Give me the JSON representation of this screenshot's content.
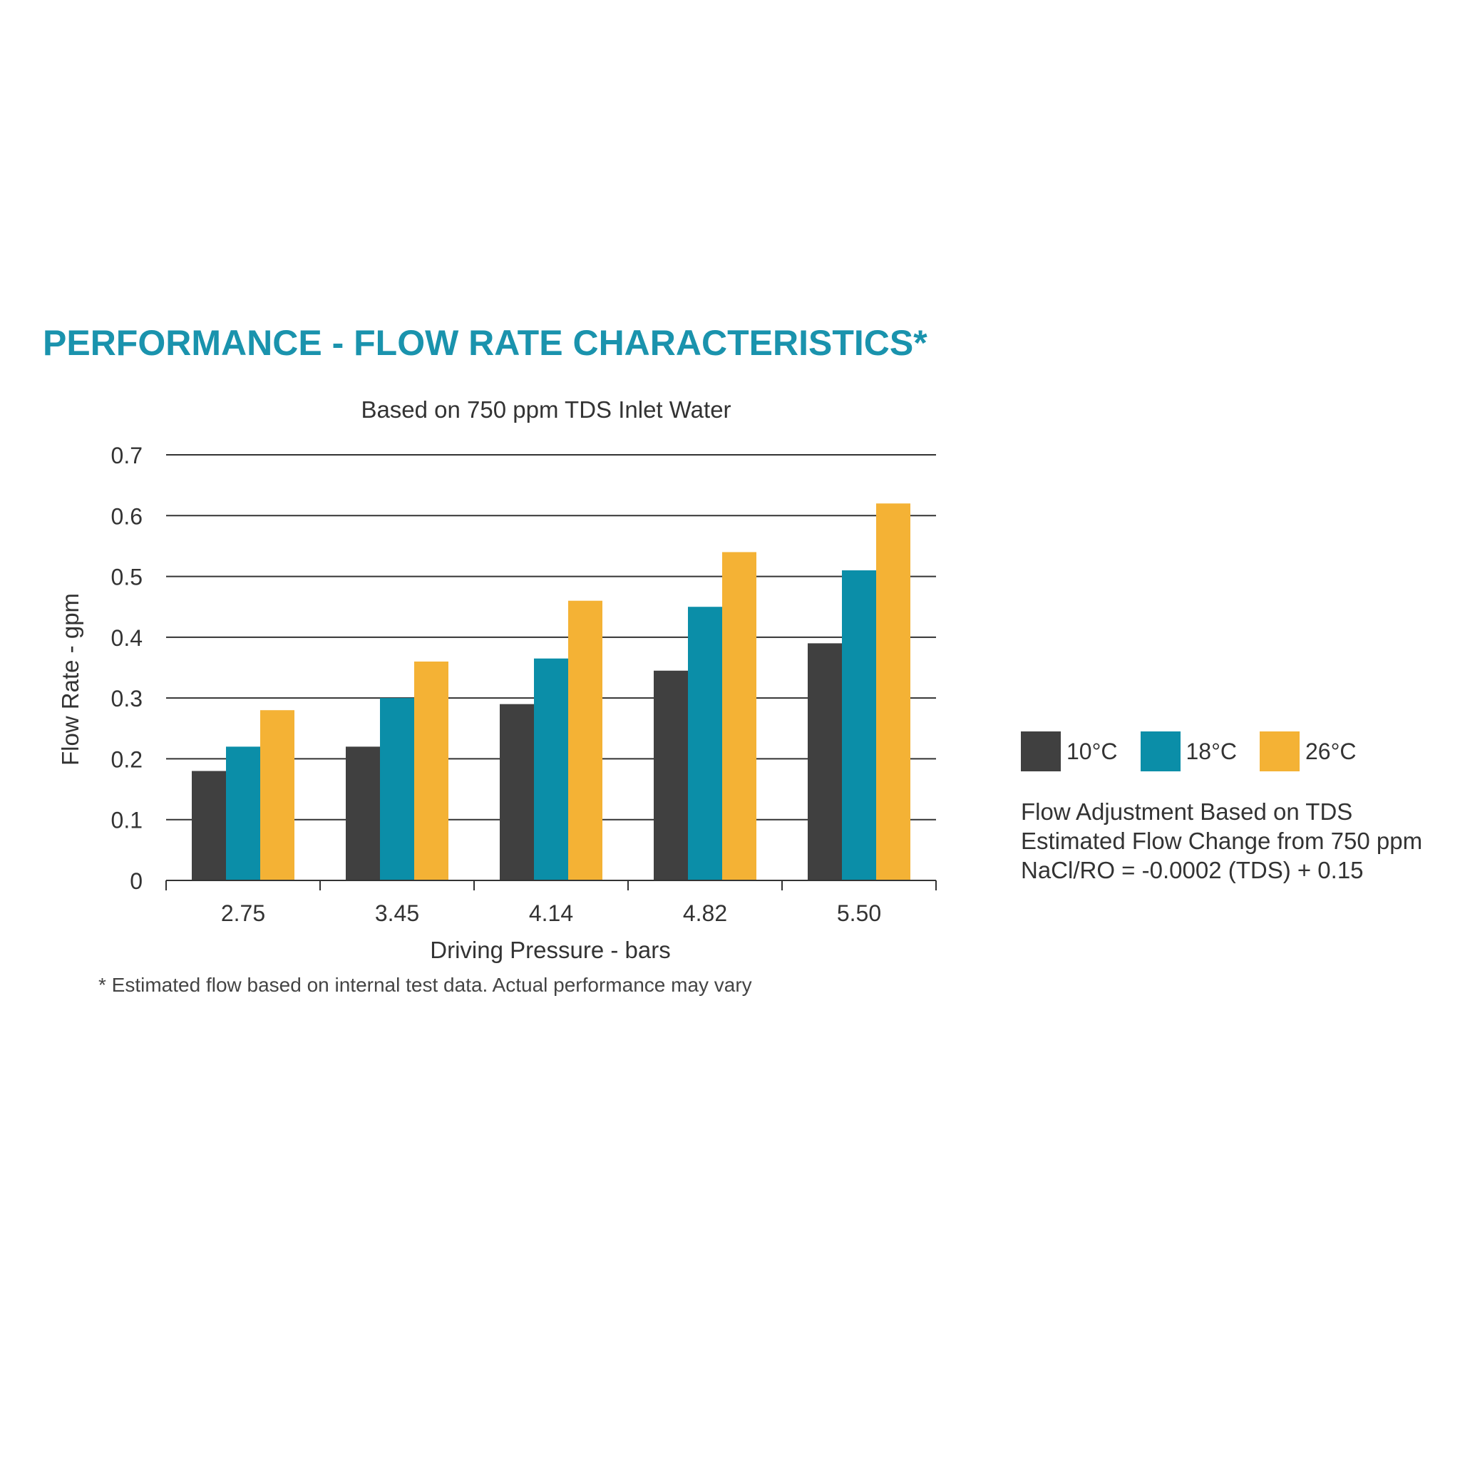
{
  "heading": "PERFORMANCE - FLOW RATE CHARACTERISTICS*",
  "chart_data": {
    "type": "bar",
    "title": "Based on 750 ppm TDS Inlet Water",
    "xlabel": "Driving Pressure - bars",
    "ylabel": "Flow Rate - gpm",
    "categories": [
      "2.75",
      "3.45",
      "4.14",
      "4.82",
      "5.50"
    ],
    "ylim": [
      0,
      0.7
    ],
    "yticks": [
      "0",
      "0.1",
      "0.2",
      "0.3",
      "0.4",
      "0.5",
      "0.6",
      "0.7"
    ],
    "grid": true,
    "legend_position": "right",
    "series": [
      {
        "name": "10°C",
        "color": "#404040",
        "values": [
          0.18,
          0.22,
          0.29,
          0.345,
          0.39
        ]
      },
      {
        "name": "18°C",
        "color": "#0b8ea8",
        "values": [
          0.22,
          0.3,
          0.365,
          0.45,
          0.51
        ]
      },
      {
        "name": "26°C",
        "color": "#f4b235",
        "values": [
          0.28,
          0.36,
          0.46,
          0.54,
          0.62
        ]
      }
    ]
  },
  "adjustment": {
    "line1": "Flow Adjustment Based on TDS",
    "line2": "Estimated Flow Change from 750 ppm",
    "line3": "NaCl/RO = -0.0002 (TDS) + 0.15"
  },
  "footnote": "* Estimated flow based on internal test data. Actual performance may vary"
}
